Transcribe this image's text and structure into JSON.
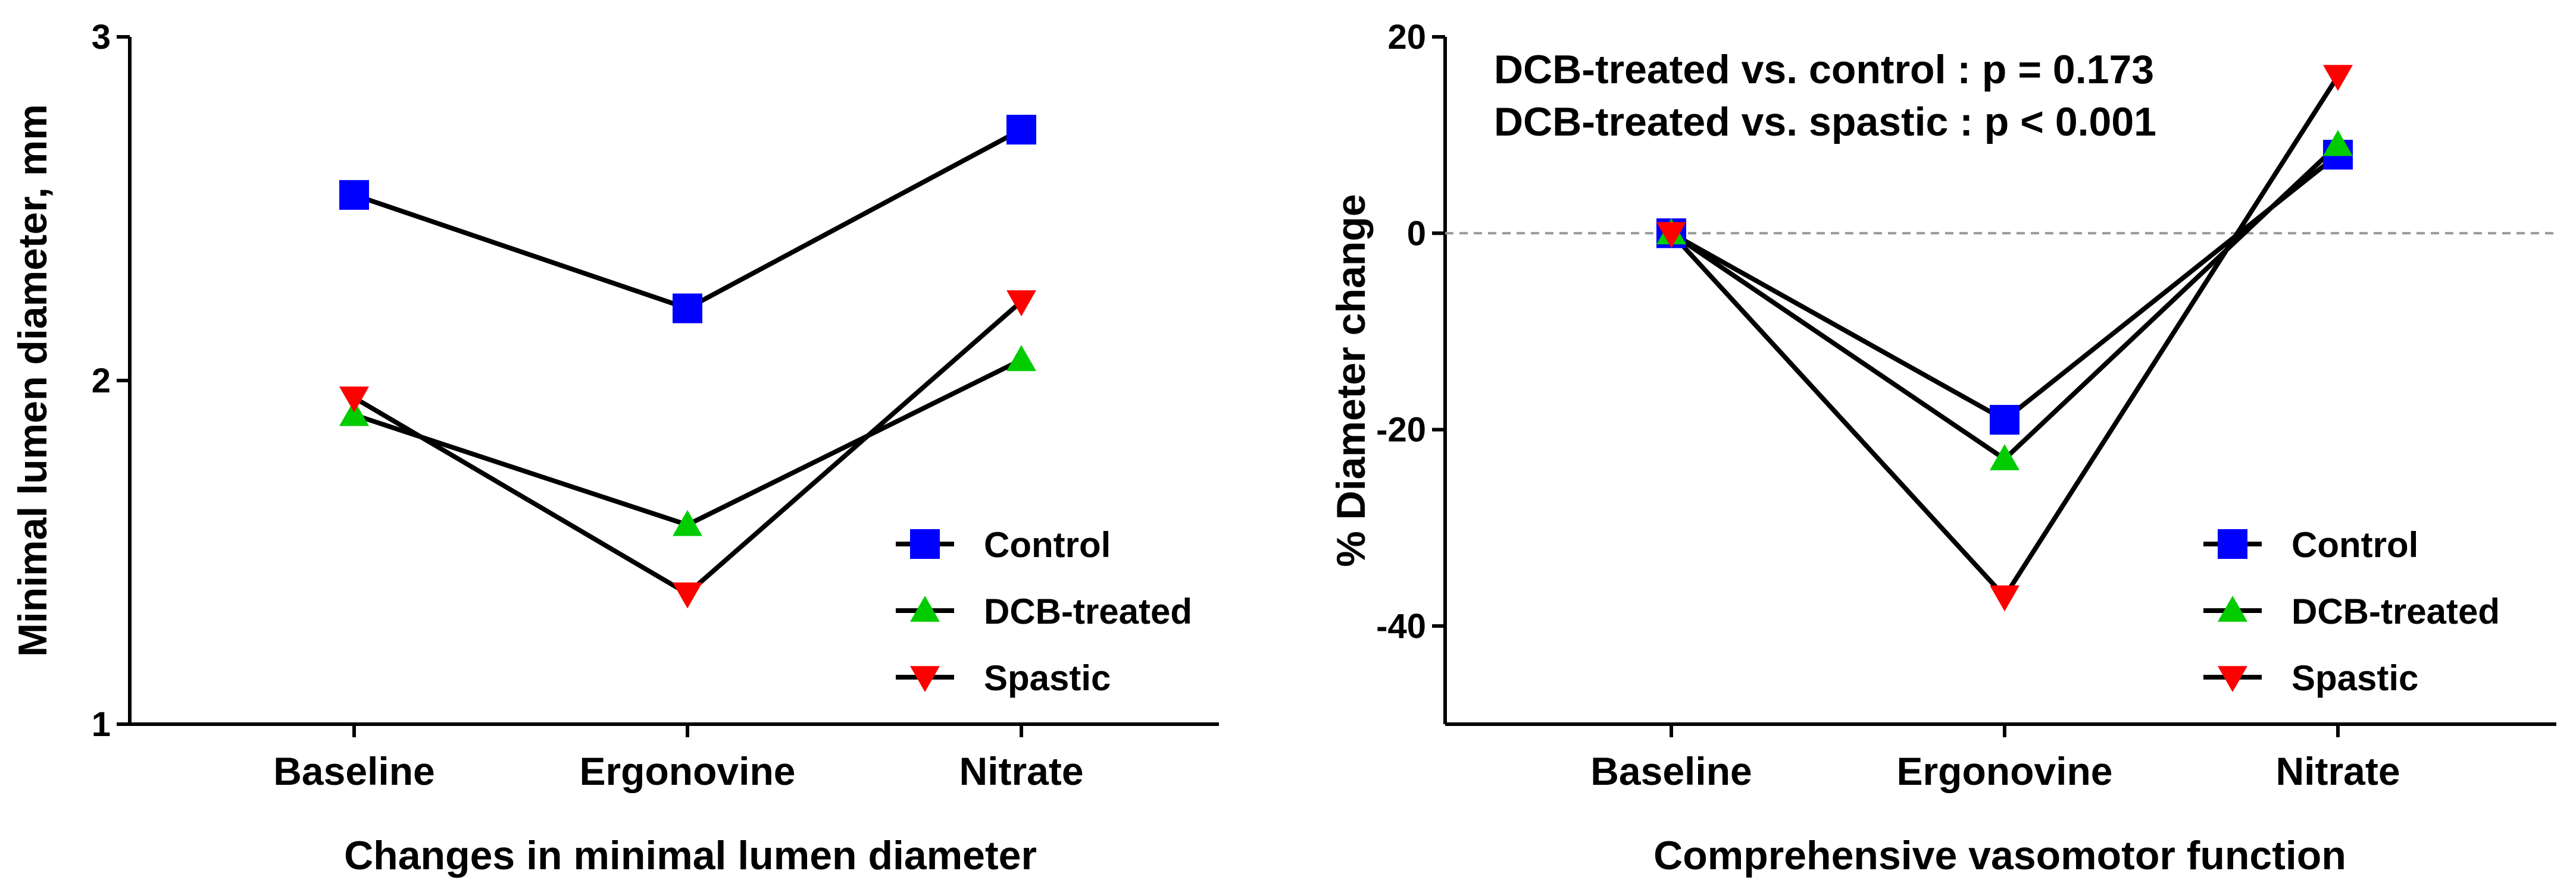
{
  "chart_data": [
    {
      "type": "line",
      "categories": [
        "Baseline",
        "Ergonovine",
        "Nitrate"
      ],
      "series": [
        {
          "name": "Control",
          "values": [
            2.54,
            2.21,
            2.73
          ],
          "color": "#0000ff",
          "marker": "square"
        },
        {
          "name": "DCB-treated",
          "values": [
            1.9,
            1.58,
            2.06
          ],
          "color": "#00cc00",
          "marker": "triangle-up"
        },
        {
          "name": "Spastic",
          "values": [
            1.95,
            1.38,
            2.23
          ],
          "color": "#ff0000",
          "marker": "triangle-down"
        }
      ],
      "ylim": [
        1,
        3
      ],
      "yticks": [
        "1",
        "2",
        "3"
      ],
      "ylabel": "Minimal lumen diameter, mm",
      "xlabel": "Changes in minimal lumen diameter",
      "legend_position": "bottom-right",
      "grid": false
    },
    {
      "type": "line",
      "categories": [
        "Baseline",
        "Ergonovine",
        "Nitrate"
      ],
      "series": [
        {
          "name": "Control",
          "values": [
            0,
            -19,
            8
          ],
          "color": "#0000ff",
          "marker": "square"
        },
        {
          "name": "DCB-treated",
          "values": [
            0,
            -23,
            9
          ],
          "color": "#00cc00",
          "marker": "triangle-up"
        },
        {
          "name": "Spastic",
          "values": [
            0,
            -37,
            16
          ],
          "color": "#ff0000",
          "marker": "triangle-down"
        }
      ],
      "ylim": [
        -50,
        20
      ],
      "yticks": [
        "-40",
        "-20",
        "0",
        "20"
      ],
      "ylabel": "% Diameter change",
      "xlabel": "Comprehensive vasomotor function",
      "reference_line": 0,
      "annotations": [
        "DCB-treated vs. control : p = 0.173",
        "DCB-treated vs. spastic : p < 0.001"
      ],
      "legend_position": "bottom-right",
      "grid": false
    }
  ]
}
